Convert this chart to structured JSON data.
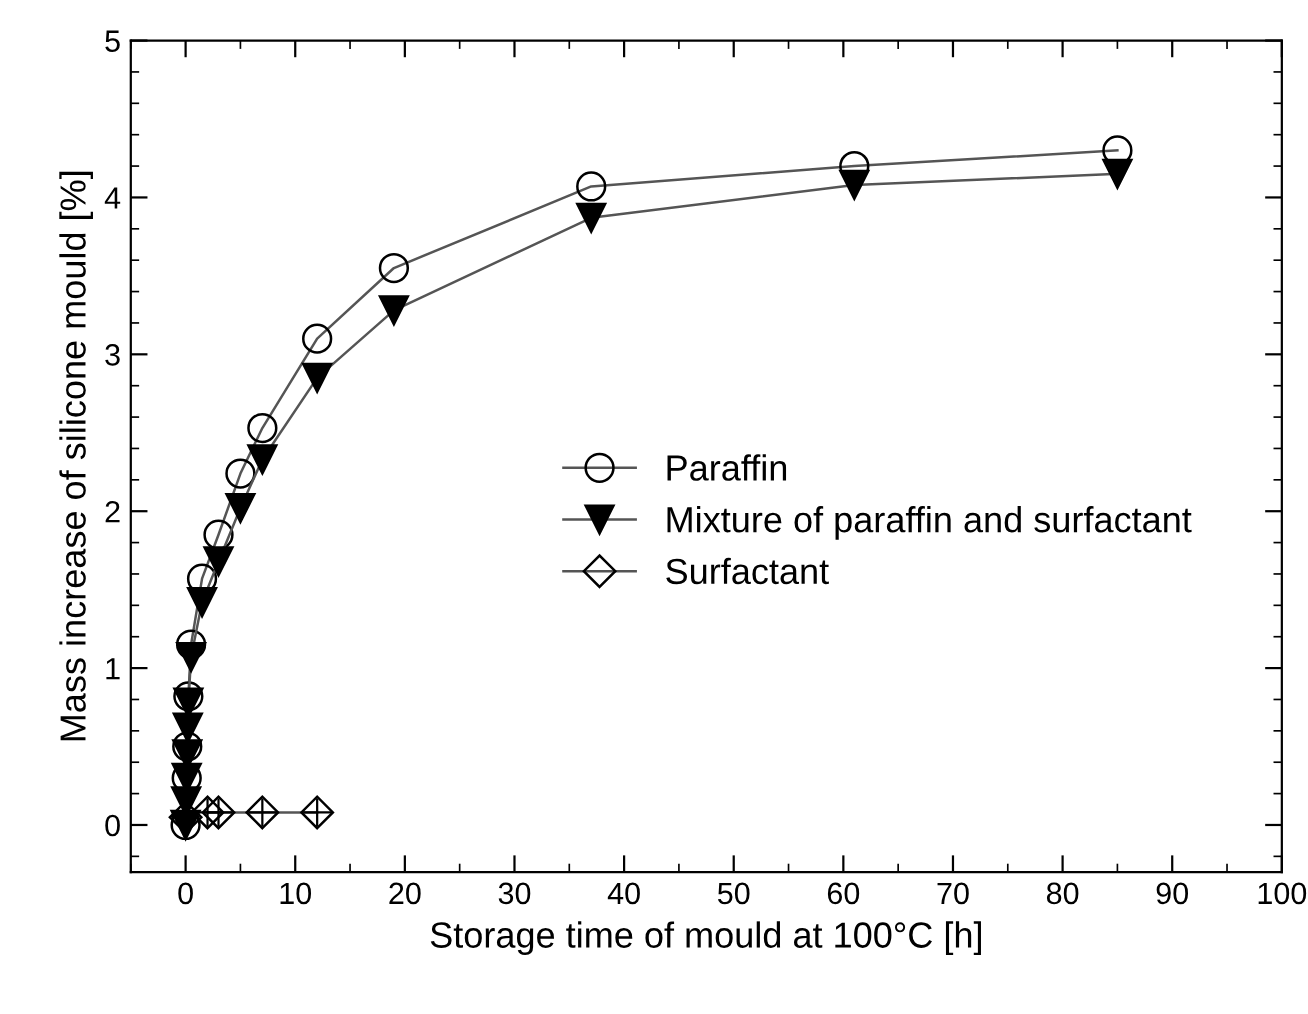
{
  "chart_data": {
    "type": "line",
    "xlabel": "Storage time of mould at 100°C [h]",
    "ylabel": "Mass increase of silicone mould [%]",
    "xlim": [
      -5,
      100
    ],
    "ylim": [
      -0.3,
      5
    ],
    "xticks": [
      0,
      10,
      20,
      30,
      40,
      50,
      60,
      70,
      80,
      90,
      100
    ],
    "yticks": [
      0,
      1,
      2,
      3,
      4,
      5
    ],
    "grid": false,
    "legend": "right",
    "line_style": "solid",
    "series": [
      {
        "name": "Paraffin",
        "color": "#000000",
        "marker": "circle",
        "x": [
          0,
          0.05,
          0.1,
          0.15,
          0.25,
          0.5,
          1.5,
          3,
          5,
          7,
          12,
          19,
          37,
          61,
          85
        ],
        "values": [
          0.0,
          null,
          0.3,
          0.5,
          0.82,
          1.15,
          1.57,
          1.85,
          2.24,
          2.53,
          3.1,
          3.55,
          4.07,
          4.2,
          4.3
        ]
      },
      {
        "name": "Mixture of paraffin and surfactant",
        "color": "#000000",
        "marker": "triangle",
        "x": [
          0,
          0.05,
          0.1,
          0.15,
          0.2,
          0.25,
          0.5,
          1.5,
          3,
          5,
          7,
          12,
          19,
          37,
          61,
          85
        ],
        "values": [
          0.0,
          0.15,
          0.3,
          0.45,
          0.62,
          0.78,
          1.07,
          1.42,
          1.68,
          2.02,
          2.33,
          2.85,
          3.28,
          3.87,
          4.08,
          4.15
        ]
      },
      {
        "name": "Surfactant",
        "color": "#000000",
        "marker": "diamond",
        "x": [
          0,
          0.5,
          1,
          2,
          3,
          7,
          12
        ],
        "values": [
          0.05,
          null,
          null,
          0.08,
          0.08,
          0.08,
          0.08
        ]
      }
    ]
  }
}
